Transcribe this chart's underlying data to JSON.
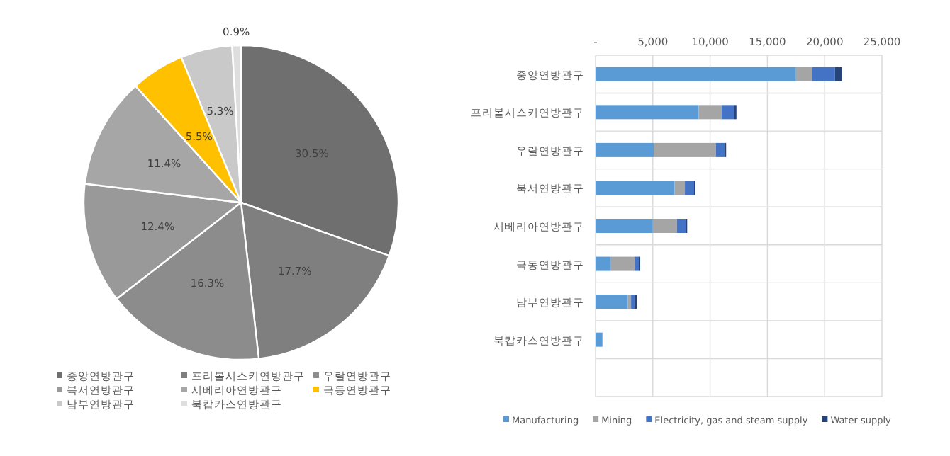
{
  "chart_data": [
    {
      "type": "pie",
      "categories": [
        "중앙연방관구",
        "프리볼시스키연방관구",
        "우랄연방관구",
        "북서연방관구",
        "시베리아연방관구",
        "극동연방관구",
        "남부연방관구",
        "북캅카스연방관구"
      ],
      "values": [
        30.5,
        17.7,
        16.3,
        12.4,
        11.4,
        5.5,
        5.3,
        0.9
      ],
      "colors": [
        "#6f6f6f",
        "#7f7f7f",
        "#8c8c8c",
        "#999999",
        "#a6a6a6",
        "#ffc000",
        "#c9c9c9",
        "#dedede"
      ],
      "value_labels": [
        "30.5%",
        "17.7%",
        "16.3%",
        "12.4%",
        "11.4%",
        "5.5%",
        "5.3%",
        "0.9%"
      ],
      "legend": "bottom"
    },
    {
      "type": "bar",
      "orientation": "horizontal",
      "stacked": true,
      "categories": [
        "중앙연방관구",
        "프리볼시스키연방관구",
        "우랄연방관구",
        "북서연방관구",
        "시베리아연방관구",
        "극동연방관구",
        "남부연방관구",
        "북캅카스연방관구",
        null
      ],
      "series": [
        {
          "name": "Manufacturing",
          "color": "#5b9bd5",
          "values": [
            17500,
            9000,
            5100,
            6900,
            5000,
            1300,
            2800,
            600,
            null
          ]
        },
        {
          "name": "Mining",
          "color": "#a5a5a5",
          "values": [
            1400,
            2000,
            5400,
            900,
            2100,
            2100,
            300,
            null,
            null
          ]
        },
        {
          "name": "Electricity, gas and steam supply",
          "color": "#4472c4",
          "values": [
            2000,
            1100,
            800,
            800,
            800,
            400,
            300,
            null,
            null
          ]
        },
        {
          "name": "Water supply",
          "color": "#264478",
          "values": [
            600,
            200,
            100,
            100,
            100,
            100,
            200,
            null,
            null
          ]
        }
      ],
      "xlim": [
        0,
        25000
      ],
      "xticks": [
        {
          "value": 0,
          "label": "-"
        },
        {
          "value": 5000,
          "label": "5,000"
        },
        {
          "value": 10000,
          "label": "10,000"
        },
        {
          "value": 15000,
          "label": "15,000"
        },
        {
          "value": 20000,
          "label": "20,000"
        },
        {
          "value": 25000,
          "label": "25,000"
        }
      ],
      "grid": true,
      "legend": "bottom"
    }
  ]
}
